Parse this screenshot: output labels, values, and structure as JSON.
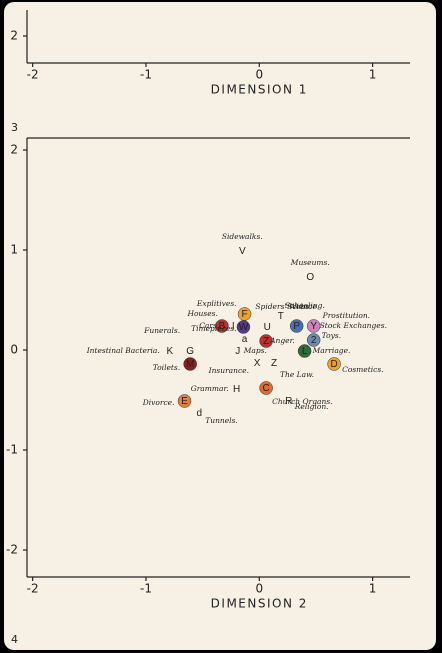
{
  "frame_labels": [
    "3",
    "4"
  ],
  "chart_data": [
    {
      "type": "axis",
      "xlabel": "DIMENSION 1",
      "xlim": [
        -2.05,
        1.33
      ],
      "xticks": [
        -2,
        -1,
        0,
        1
      ],
      "ylim": [
        1.73,
        2.26
      ],
      "yticks": [
        2
      ]
    },
    {
      "type": "scatter",
      "xlabel": "DIMENSION 2",
      "xlim": [
        -2.05,
        1.33
      ],
      "xticks": [
        -2,
        -1,
        0,
        1
      ],
      "ylim": [
        -2.27,
        2.12
      ],
      "yticks": [
        2,
        1,
        0,
        -1,
        -2
      ],
      "points": [
        {
          "letter": "V",
          "label": "Sidewalks.",
          "x": -0.15,
          "y": 0.99,
          "color": null
        },
        {
          "letter": "O",
          "label": "Museums.",
          "x": 0.45,
          "y": 0.73,
          "color": null
        },
        {
          "letter": "F",
          "label": "Explitives.",
          "x": -0.13,
          "y": 0.36,
          "color": "#f0a030"
        },
        {
          "letter": "W",
          "label": "Spiders' Webs.",
          "x": -0.14,
          "y": 0.23,
          "color": "#5a3a8a"
        },
        {
          "letter": "B",
          "label": "Houses.",
          "x": -0.33,
          "y": 0.24,
          "color": "#c0302a"
        },
        {
          "letter": "I",
          "label": "Cars.",
          "x": -0.23,
          "y": 0.24,
          "color": null
        },
        {
          "letter": "U",
          "label": "Science.",
          "x": 0.07,
          "y": 0.23,
          "color": null
        },
        {
          "letter": "T",
          "label": "Schooling.",
          "x": 0.19,
          "y": 0.34,
          "color": null
        },
        {
          "letter": "P",
          "label": "Prostitution.",
          "x": 0.33,
          "y": 0.24,
          "color": "#4a6fb0"
        },
        {
          "letter": "Y",
          "label": "Stock Exchanges.",
          "x": 0.48,
          "y": 0.24,
          "color": "#d080c0"
        },
        {
          "letter": "2",
          "label": "Toys.",
          "x": 0.48,
          "y": 0.1,
          "color": "#6a8ab0"
        },
        {
          "letter": "Z",
          "label": "Anger.",
          "x": 0.06,
          "y": 0.09,
          "color": "#c0302a"
        },
        {
          "letter": "a",
          "label": "Timepieces.",
          "x": -0.13,
          "y": 0.11,
          "color": null
        },
        {
          "letter": "J",
          "label": "Maps.",
          "x": -0.19,
          "y": -0.01,
          "color": null
        },
        {
          "letter": "L",
          "label": "Marriage.",
          "x": 0.4,
          "y": -0.01,
          "color": "#2f6a3a"
        },
        {
          "letter": "D",
          "label": "Cosmetics.",
          "x": 0.66,
          "y": -0.14,
          "color": "#f0a030"
        },
        {
          "letter": "K",
          "label": "Intestinal Bacteria.",
          "x": -0.79,
          "y": -0.01,
          "color": null
        },
        {
          "letter": "G",
          "label": "Funerals.",
          "x": -0.61,
          "y": -0.01,
          "color": null
        },
        {
          "letter": "M",
          "label": "Toilets.",
          "x": -0.61,
          "y": -0.14,
          "color": "#8a2020"
        },
        {
          "letter": "X",
          "label": "Insurance.",
          "x": -0.02,
          "y": -0.13,
          "color": null
        },
        {
          "letter": "Z",
          "label": "The Law.",
          "x": 0.13,
          "y": -0.13,
          "color": null
        },
        {
          "letter": "H",
          "label": "Grammar.",
          "x": -0.2,
          "y": -0.39,
          "color": null
        },
        {
          "letter": "C",
          "label": "Church Organs.",
          "x": 0.06,
          "y": -0.38,
          "color": "#e06a30"
        },
        {
          "letter": "R",
          "label": "Religion.",
          "x": 0.26,
          "y": -0.51,
          "color": null
        },
        {
          "letter": "E",
          "label": "Divorce.",
          "x": -0.66,
          "y": -0.51,
          "color": "#e08040"
        },
        {
          "letter": "d",
          "label": "Tunnels.",
          "x": -0.53,
          "y": -0.63,
          "color": null
        }
      ]
    }
  ]
}
